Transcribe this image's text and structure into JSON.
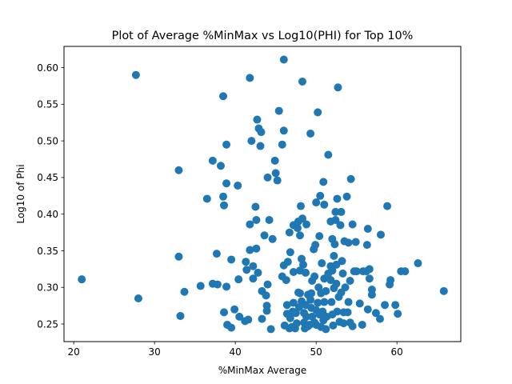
{
  "chart_data": {
    "type": "scatter",
    "title": "Plot of Average %MinMax vs Log10(PHI) for Top 10%",
    "xlabel": "%MinMax Average",
    "ylabel": "Log10 of Phi",
    "xlim": [
      18.8,
      67.9
    ],
    "ylim": [
      0.226,
      0.629
    ],
    "xticks": [
      20,
      30,
      40,
      50,
      60
    ],
    "xtick_labels": [
      "20",
      "30",
      "40",
      "50",
      "60"
    ],
    "yticks": [
      0.25,
      0.3,
      0.35,
      0.4,
      0.45,
      0.5,
      0.55,
      0.6
    ],
    "ytick_labels": [
      "0.25",
      "0.30",
      "0.35",
      "0.40",
      "0.45",
      "0.50",
      "0.55",
      "0.60"
    ],
    "grid": false,
    "marker_color": "#1f77b4",
    "points": [
      [
        21.0,
        0.311
      ],
      [
        27.7,
        0.59
      ],
      [
        28.0,
        0.285
      ],
      [
        33.0,
        0.46
      ],
      [
        33.0,
        0.342
      ],
      [
        33.2,
        0.261
      ],
      [
        33.7,
        0.294
      ],
      [
        35.7,
        0.302
      ],
      [
        36.5,
        0.421
      ],
      [
        37.2,
        0.473
      ],
      [
        37.2,
        0.305
      ],
      [
        37.7,
        0.346
      ],
      [
        37.8,
        0.304
      ],
      [
        38.2,
        0.466
      ],
      [
        38.5,
        0.561
      ],
      [
        38.5,
        0.424
      ],
      [
        38.6,
        0.412
      ],
      [
        38.6,
        0.266
      ],
      [
        38.9,
        0.442
      ],
      [
        38.9,
        0.495
      ],
      [
        38.9,
        0.301
      ],
      [
        39.0,
        0.249
      ],
      [
        39.5,
        0.245
      ],
      [
        39.5,
        0.338
      ],
      [
        39.9,
        0.27
      ],
      [
        40.3,
        0.439
      ],
      [
        40.4,
        0.311
      ],
      [
        40.5,
        0.26
      ],
      [
        41.2,
        0.254
      ],
      [
        41.3,
        0.335
      ],
      [
        41.4,
        0.324
      ],
      [
        41.6,
        0.256
      ],
      [
        41.8,
        0.586
      ],
      [
        41.8,
        0.351
      ],
      [
        41.8,
        0.386
      ],
      [
        42.0,
        0.5
      ],
      [
        42.2,
        0.312
      ],
      [
        42.2,
        0.329
      ],
      [
        42.5,
        0.41
      ],
      [
        42.6,
        0.353
      ],
      [
        42.6,
        0.392
      ],
      [
        42.7,
        0.529
      ],
      [
        42.8,
        0.32
      ],
      [
        42.9,
        0.517
      ],
      [
        43.1,
        0.493
      ],
      [
        43.2,
        0.512
      ],
      [
        43.3,
        0.295
      ],
      [
        43.3,
        0.257
      ],
      [
        43.6,
        0.371
      ],
      [
        43.8,
        0.289
      ],
      [
        43.9,
        0.275
      ],
      [
        43.9,
        0.268
      ],
      [
        44.0,
        0.304
      ],
      [
        44.0,
        0.45
      ],
      [
        44.2,
        0.392
      ],
      [
        44.4,
        0.243
      ],
      [
        44.6,
        0.366
      ],
      [
        44.9,
        0.473
      ],
      [
        45.0,
        0.456
      ],
      [
        45.2,
        0.446
      ],
      [
        45.4,
        0.541
      ],
      [
        45.8,
        0.495
      ],
      [
        45.8,
        0.315
      ],
      [
        46.0,
        0.611
      ],
      [
        46.0,
        0.514
      ],
      [
        46.0,
        0.33
      ],
      [
        46.1,
        0.248
      ],
      [
        46.3,
        0.31
      ],
      [
        46.4,
        0.276
      ],
      [
        46.4,
        0.264
      ],
      [
        46.5,
        0.335
      ],
      [
        46.7,
        0.244
      ],
      [
        46.7,
        0.375
      ],
      [
        46.8,
        0.258
      ],
      [
        46.8,
        0.348
      ],
      [
        47.0,
        0.246
      ],
      [
        47.1,
        0.267
      ],
      [
        47.2,
        0.385
      ],
      [
        47.2,
        0.321
      ],
      [
        47.2,
        0.279
      ],
      [
        47.4,
        0.244
      ],
      [
        47.5,
        0.265
      ],
      [
        47.6,
        0.251
      ],
      [
        47.7,
        0.381
      ],
      [
        47.8,
        0.39
      ],
      [
        47.8,
        0.293
      ],
      [
        47.9,
        0.273
      ],
      [
        48.0,
        0.323
      ],
      [
        48.0,
        0.371
      ],
      [
        48.0,
        0.292
      ],
      [
        48.1,
        0.411
      ],
      [
        48.2,
        0.339
      ],
      [
        48.2,
        0.281
      ],
      [
        48.3,
        0.581
      ],
      [
        48.3,
        0.394
      ],
      [
        48.4,
        0.331
      ],
      [
        48.5,
        0.265
      ],
      [
        48.5,
        0.252
      ],
      [
        48.6,
        0.244
      ],
      [
        48.7,
        0.276
      ],
      [
        48.7,
        0.32
      ],
      [
        48.8,
        0.386
      ],
      [
        48.8,
        0.26
      ],
      [
        49.0,
        0.29
      ],
      [
        49.0,
        0.247
      ],
      [
        49.2,
        0.249
      ],
      [
        49.3,
        0.51
      ],
      [
        49.3,
        0.283
      ],
      [
        49.4,
        0.292
      ],
      [
        49.4,
        0.272
      ],
      [
        49.5,
        0.26
      ],
      [
        49.5,
        0.309
      ],
      [
        49.7,
        0.352
      ],
      [
        49.8,
        0.315
      ],
      [
        49.8,
        0.252
      ],
      [
        49.9,
        0.358
      ],
      [
        50.0,
        0.249
      ],
      [
        50.0,
        0.269
      ],
      [
        50.0,
        0.416
      ],
      [
        50.2,
        0.539
      ],
      [
        50.2,
        0.279
      ],
      [
        50.3,
        0.3
      ],
      [
        50.4,
        0.263
      ],
      [
        50.4,
        0.37
      ],
      [
        50.5,
        0.425
      ],
      [
        50.6,
        0.246
      ],
      [
        50.6,
        0.292
      ],
      [
        50.7,
        0.333
      ],
      [
        50.8,
        0.267
      ],
      [
        50.9,
        0.444
      ],
      [
        50.9,
        0.255
      ],
      [
        51.0,
        0.312
      ],
      [
        51.0,
        0.413
      ],
      [
        51.0,
        0.28
      ],
      [
        51.2,
        0.243
      ],
      [
        51.2,
        0.295
      ],
      [
        51.3,
        0.26
      ],
      [
        51.5,
        0.481
      ],
      [
        51.5,
        0.319
      ],
      [
        51.8,
        0.329
      ],
      [
        51.8,
        0.39
      ],
      [
        51.8,
        0.31
      ],
      [
        51.9,
        0.28
      ],
      [
        52.0,
        0.366
      ],
      [
        52.0,
        0.323
      ],
      [
        52.0,
        0.263
      ],
      [
        52.1,
        0.248
      ],
      [
        52.2,
        0.343
      ],
      [
        52.2,
        0.299
      ],
      [
        52.3,
        0.359
      ],
      [
        52.4,
        0.392
      ],
      [
        52.4,
        0.403
      ],
      [
        52.5,
        0.305
      ],
      [
        52.5,
        0.331
      ],
      [
        52.6,
        0.421
      ],
      [
        52.6,
        0.267
      ],
      [
        52.7,
        0.573
      ],
      [
        52.8,
        0.287
      ],
      [
        52.9,
        0.253
      ],
      [
        53.0,
        0.385
      ],
      [
        53.1,
        0.293
      ],
      [
        53.1,
        0.403
      ],
      [
        53.2,
        0.336
      ],
      [
        53.3,
        0.319
      ],
      [
        53.4,
        0.251
      ],
      [
        53.4,
        0.266
      ],
      [
        53.5,
        0.363
      ],
      [
        53.6,
        0.3
      ],
      [
        53.8,
        0.424
      ],
      [
        53.9,
        0.266
      ],
      [
        54.0,
        0.28
      ],
      [
        54.0,
        0.361
      ],
      [
        54.2,
        0.309
      ],
      [
        54.2,
        0.252
      ],
      [
        54.3,
        0.448
      ],
      [
        54.5,
        0.386
      ],
      [
        54.5,
        0.247
      ],
      [
        54.7,
        0.322
      ],
      [
        54.9,
        0.362
      ],
      [
        55.0,
        0.322
      ],
      [
        55.4,
        0.278
      ],
      [
        55.7,
        0.249
      ],
      [
        55.8,
        0.322
      ],
      [
        56.2,
        0.322
      ],
      [
        56.3,
        0.358
      ],
      [
        56.4,
        0.38
      ],
      [
        56.4,
        0.27
      ],
      [
        56.6,
        0.325
      ],
      [
        56.6,
        0.312
      ],
      [
        56.9,
        0.297
      ],
      [
        56.9,
        0.29
      ],
      [
        57.4,
        0.265
      ],
      [
        57.9,
        0.257
      ],
      [
        58.0,
        0.372
      ],
      [
        58.5,
        0.276
      ],
      [
        58.8,
        0.411
      ],
      [
        59.1,
        0.304
      ],
      [
        59.2,
        0.31
      ],
      [
        59.8,
        0.276
      ],
      [
        60.1,
        0.264
      ],
      [
        60.5,
        0.322
      ],
      [
        61.0,
        0.322
      ],
      [
        62.6,
        0.333
      ],
      [
        65.8,
        0.295
      ]
    ]
  }
}
